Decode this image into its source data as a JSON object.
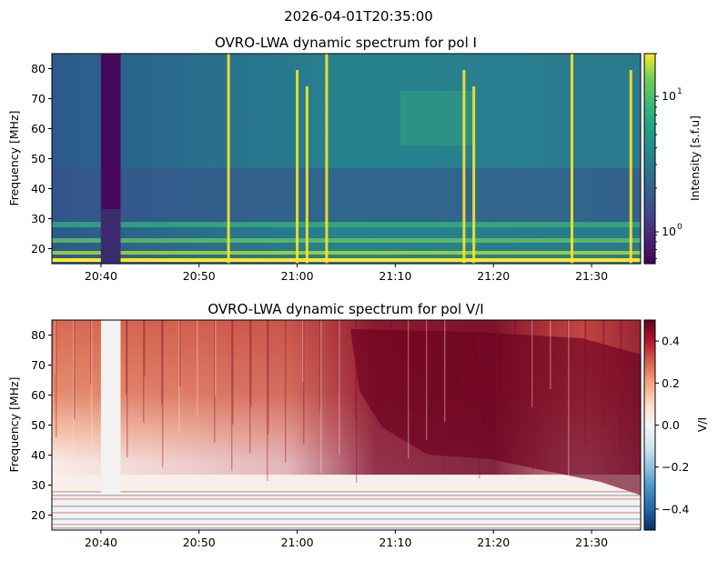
{
  "figure": {
    "suptitle": "2026-04-01T20:35:00"
  },
  "chart_data": [
    {
      "type": "heatmap",
      "title": "OVRO-LWA dynamic spectrum for pol I",
      "xlabel": "",
      "ylabel": "Frequency [MHz]",
      "xlim": [
        "20:35",
        "21:35"
      ],
      "ylim": [
        15,
        85
      ],
      "x_ticks": [
        "20:40",
        "20:50",
        "21:00",
        "21:10",
        "21:20",
        "21:30"
      ],
      "y_ticks": [
        "20",
        "30",
        "40",
        "50",
        "60",
        "70",
        "80"
      ],
      "y_tick_values": [
        20,
        30,
        40,
        50,
        60,
        70,
        80
      ],
      "colormap": "viridis",
      "color_scale": "log",
      "colorbar": {
        "label": "Intensity [s.f.u]",
        "range": [
          0.55,
          20
        ],
        "tick_values": [
          1,
          10
        ],
        "tick_labels": [
          "10^0",
          "10^1"
        ]
      },
      "data_gap": {
        "start": "20:40",
        "end": "20:42"
      },
      "bright_bursts_utc": [
        "20:53",
        "21:00",
        "21:01",
        "21:03",
        "21:17",
        "21:18",
        "21:28",
        "21:34"
      ]
    },
    {
      "type": "heatmap",
      "title": "OVRO-LWA dynamic spectrum for pol V/I",
      "xlabel": "",
      "ylabel": "Frequency [MHz]",
      "xlim": [
        "20:35",
        "21:35"
      ],
      "ylim": [
        15,
        85
      ],
      "x_ticks": [
        "20:40",
        "20:50",
        "21:00",
        "21:10",
        "21:20",
        "21:30"
      ],
      "y_ticks": [
        "20",
        "30",
        "40",
        "50",
        "60",
        "70",
        "80"
      ],
      "y_tick_values": [
        20,
        30,
        40,
        50,
        60,
        70,
        80
      ],
      "colormap": "RdBu_r",
      "color_scale": "linear",
      "colorbar": {
        "label": "V/I",
        "range": [
          -0.5,
          0.5
        ],
        "tick_values": [
          0.4,
          0.2,
          0.0,
          -0.2,
          -0.4
        ],
        "tick_labels": [
          "0.4",
          "0.2",
          "0.0",
          "−0.2",
          "−0.4"
        ]
      },
      "data_gap": {
        "start": "20:40",
        "end": "20:42"
      }
    }
  ]
}
